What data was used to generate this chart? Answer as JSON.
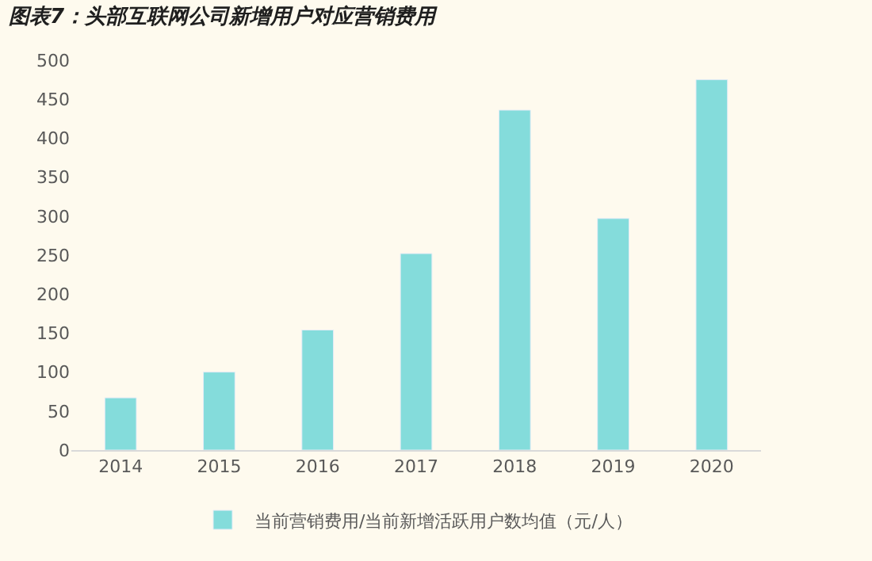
{
  "chart_data": {
    "type": "bar",
    "title": "图表7：头部互联网公司新增用户对应营销费用",
    "categories": [
      "2014",
      "2015",
      "2016",
      "2017",
      "2018",
      "2019",
      "2020"
    ],
    "series": [
      {
        "name": "当前营销费用/当前新增活跃用户数均值（元/人）",
        "color": "#84dcdb",
        "values": [
          67,
          100,
          154,
          252,
          436,
          297,
          475
        ]
      }
    ],
    "ylim": [
      0,
      500
    ],
    "yticks": [
      0,
      50,
      100,
      150,
      200,
      250,
      300,
      350,
      400,
      450,
      500
    ],
    "grid": false,
    "legend": "bottom"
  }
}
